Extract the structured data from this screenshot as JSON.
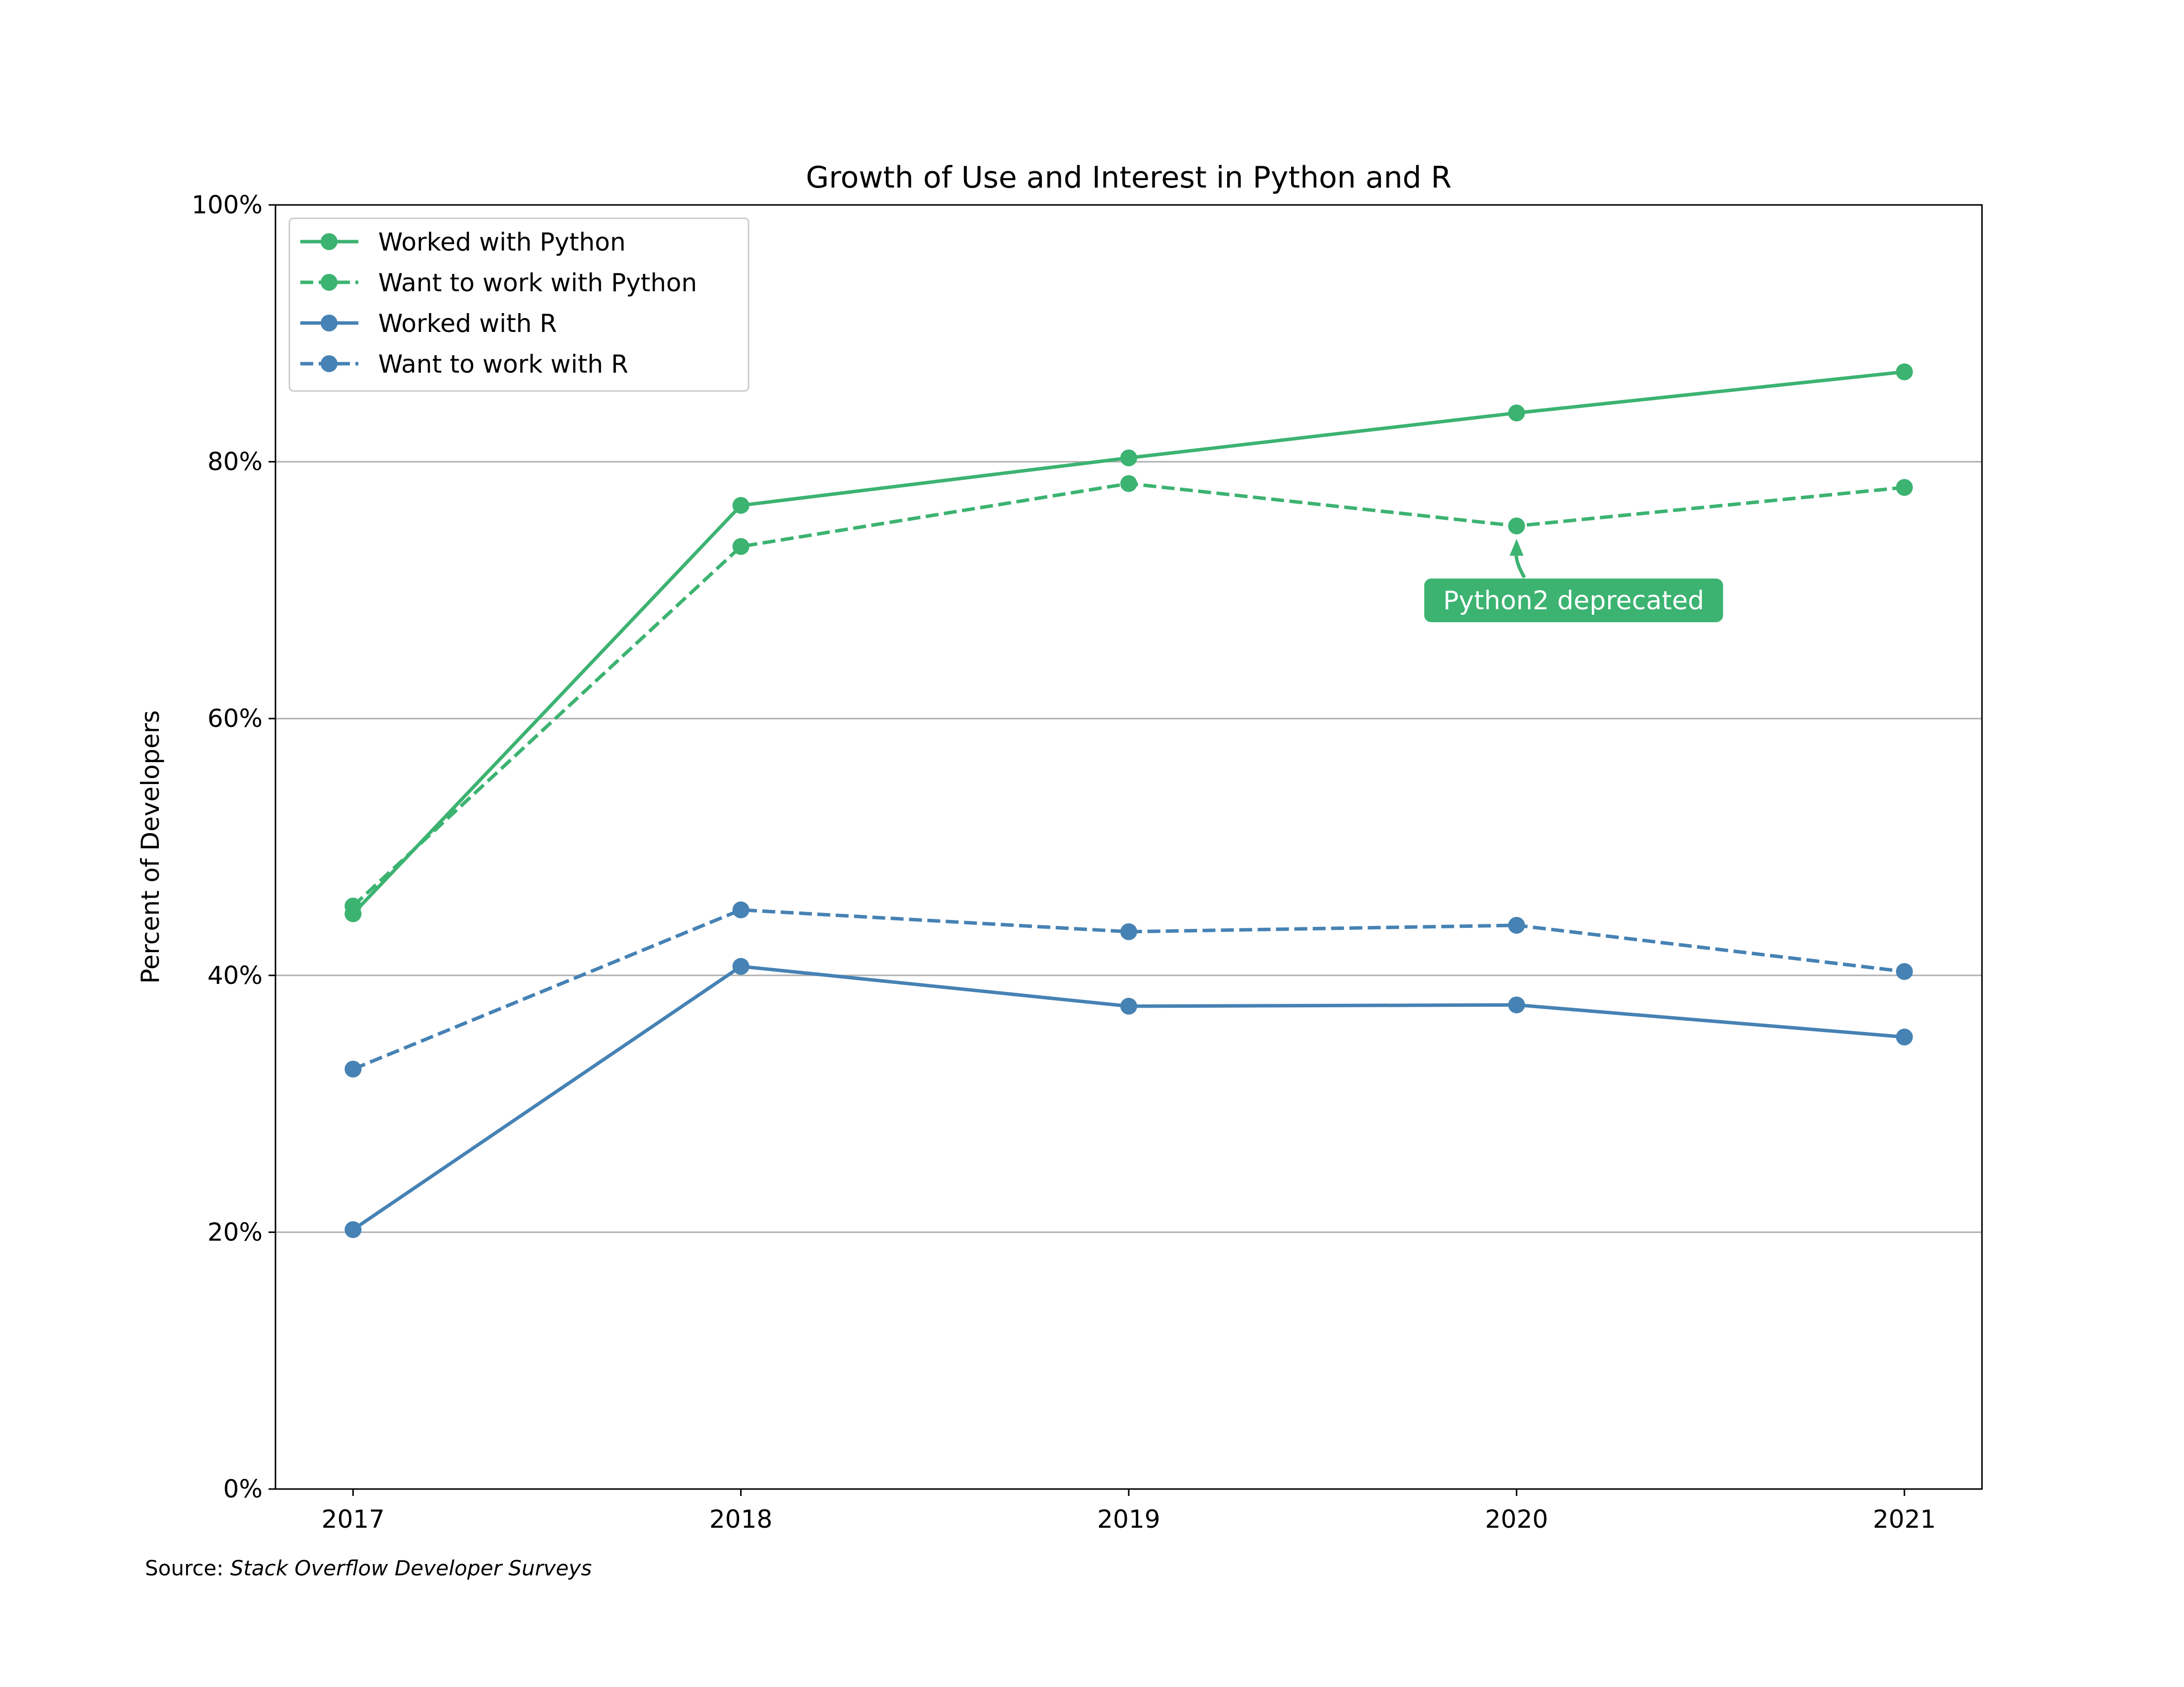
{
  "chart_data": {
    "type": "line",
    "title": "Growth of Use and Interest in Python and R",
    "xlabel": "",
    "ylabel": "Percent of Developers",
    "x": [
      2017,
      2018,
      2019,
      2020,
      2021
    ],
    "x_tick_labels": [
      "2017",
      "2018",
      "2019",
      "2020",
      "2021"
    ],
    "xlim": [
      2016.8,
      2021.2
    ],
    "ylim": [
      0,
      1
    ],
    "y_ticks": [
      0,
      0.2,
      0.4,
      0.6,
      0.8,
      1.0
    ],
    "y_tick_labels": [
      "0%",
      "20%",
      "40%",
      "60%",
      "80%",
      "100%"
    ],
    "grid": "horizontal",
    "legend_position": "upper-left",
    "series": [
      {
        "name": "Worked with Python",
        "values": [
          0.448,
          0.766,
          0.803,
          0.838,
          0.87
        ],
        "color": "#3cb371",
        "linestyle": "solid"
      },
      {
        "name": "Want to work with Python",
        "values": [
          0.454,
          0.734,
          0.783,
          0.75,
          0.78
        ],
        "color": "#3cb371",
        "linestyle": "dashed"
      },
      {
        "name": "Worked with R",
        "values": [
          0.202,
          0.407,
          0.376,
          0.377,
          0.352
        ],
        "color": "#4682b4",
        "linestyle": "solid"
      },
      {
        "name": "Want to work with R",
        "values": [
          0.327,
          0.451,
          0.434,
          0.439,
          0.403
        ],
        "color": "#4682b4",
        "linestyle": "dashed"
      }
    ],
    "annotations": [
      {
        "text": "Python2 deprecated",
        "x": 2020,
        "y": 0.75,
        "color": "#3cb371"
      }
    ],
    "source_prefix": "Source: ",
    "source_name": "Stack Overflow Developer Surveys"
  }
}
